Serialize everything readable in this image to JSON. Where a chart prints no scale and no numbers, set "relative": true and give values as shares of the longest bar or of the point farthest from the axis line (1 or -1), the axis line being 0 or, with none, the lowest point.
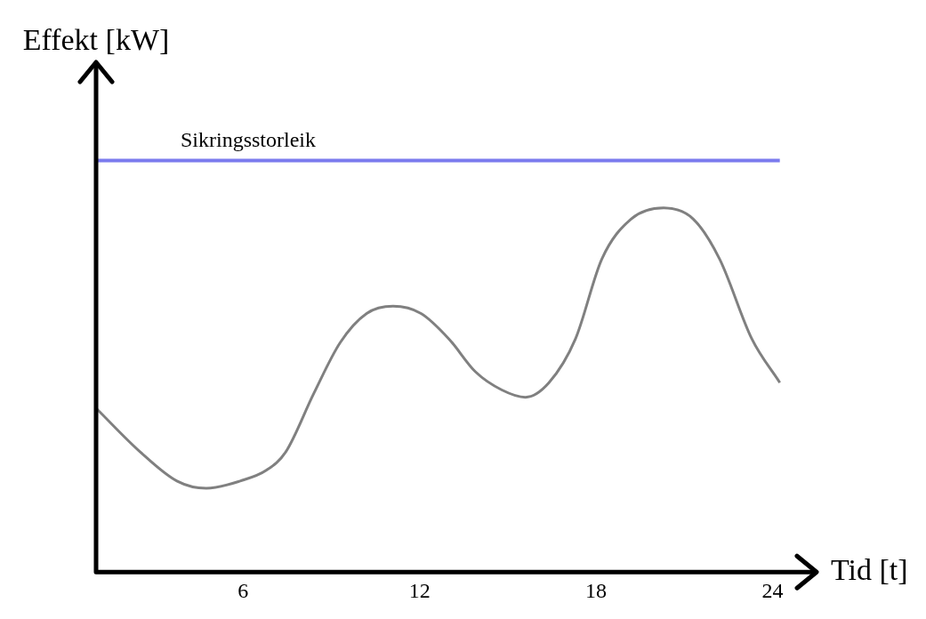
{
  "chart_data": {
    "type": "line",
    "xlabel": "Tid [t]",
    "annotations": [
      "Effekt [kW]"
    ],
    "relative": true,
    "xlim": [
      1,
      25.5
    ],
    "xticks": [
      6,
      12,
      18,
      24
    ],
    "grid": false,
    "legend": false,
    "marker": "none",
    "line_style": "solid",
    "series": [
      {
        "color": "#808080",
        "x": [
          1.0,
          2.5,
          3.75,
          4.75,
          5.9,
          6.8,
          7.45,
          8.4,
          9.3,
          10.2,
          11.1,
          12.05,
          13.0,
          13.9,
          14.8,
          15.6,
          16.4,
          17.3,
          18.2,
          19.2,
          20.3,
          21.3,
          22.2,
          23.3,
          24.25
        ],
        "values": [
          0.45,
          0.33,
          0.25,
          0.23,
          0.25,
          0.28,
          0.33,
          0.49,
          0.63,
          0.71,
          0.73,
          0.71,
          0.64,
          0.55,
          0.5,
          0.48,
          0.52,
          0.64,
          0.86,
          0.97,
          1,
          0.97,
          0.86,
          0.64,
          0.52
        ]
      }
    ],
    "ref_lines": [
      {
        "axis": "y",
        "value": 1.13,
        "label": "Sikringsstorleik",
        "color": "#7b7bee"
      }
    ]
  }
}
